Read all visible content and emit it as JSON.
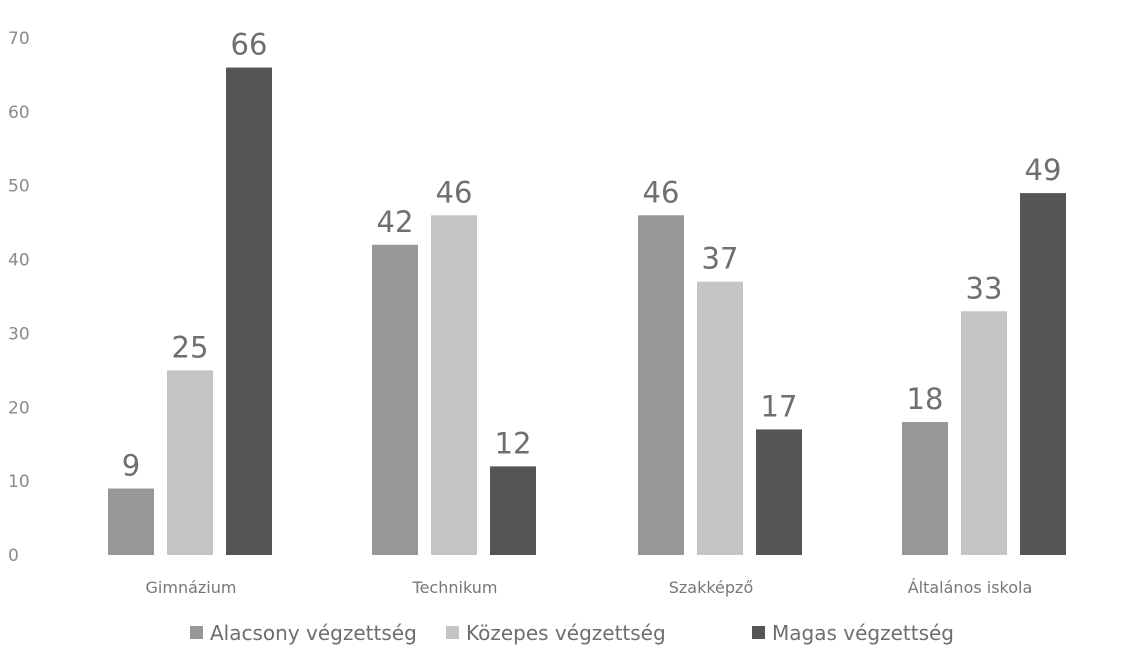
{
  "chart_data": {
    "type": "bar",
    "categories": [
      "Gimnázium",
      "Technikum",
      "Szakképző",
      "Általános iskola"
    ],
    "series": [
      {
        "name": "Alacsony végzettség",
        "values": [
          9,
          42,
          46,
          18
        ],
        "color": "#979797"
      },
      {
        "name": "Közepes végzettség",
        "values": [
          25,
          46,
          37,
          33
        ],
        "color": "#c4c4c4"
      },
      {
        "name": "Magas végzettség",
        "values": [
          66,
          12,
          17,
          49
        ],
        "color": "#555555"
      }
    ],
    "yticks": [
      0,
      10,
      20,
      30,
      40,
      50,
      60,
      70
    ],
    "ylim": [
      0,
      70
    ],
    "grid": false,
    "legend": "bottom",
    "data_labels": true
  }
}
